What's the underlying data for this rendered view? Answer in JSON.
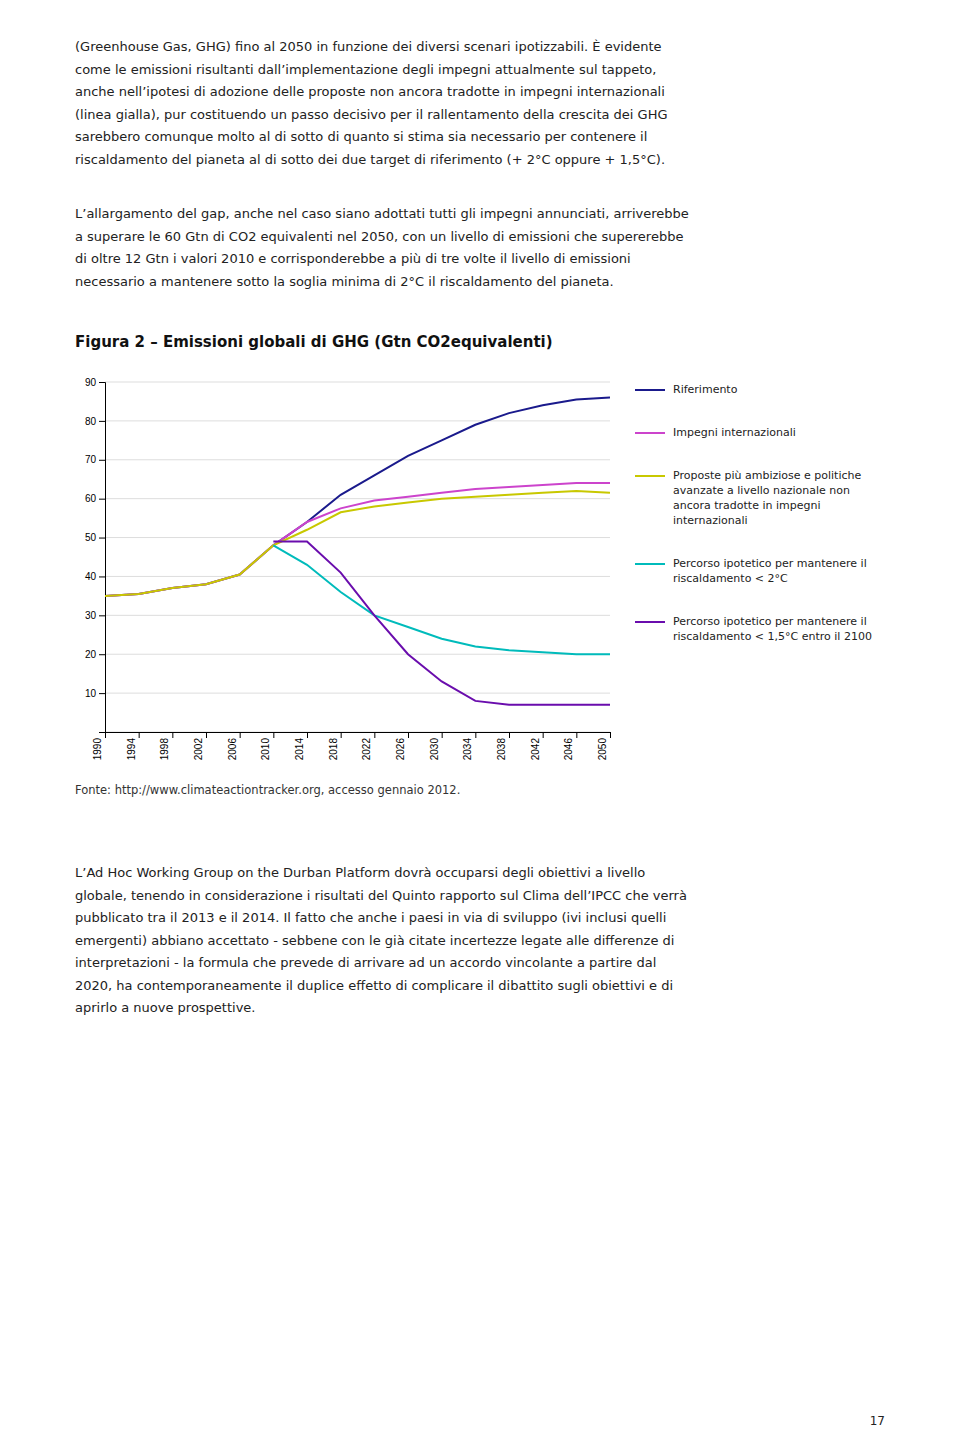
{
  "text_above": [
    [
      "(Greenhouse Gas, GHG) fino al 2050 in funzione dei diversi scenari ipotizzabili. È evidente",
      "come le emissioni risultanti dall’implementazione degli impegni attualmente sul tappeto,",
      "anche nell’ipotesi di adozione delle proposte non ancora tradotte in impegni internazionali",
      "(linea gialla), pur costituendo un passo decisivo per il rallentamento della crescita dei GHG",
      "sarebbero comunque molto al di sotto di quanto si stima sia necessario per contenere il",
      "riscaldamento del pianeta al di sotto dei due target di riferimento (+ 2°C oppure + 1,5°C)."
    ],
    [
      "L’allargamento del gap, anche nel caso siano adottati tutti gli impegni annunciati, arriverebbe",
      "a superare le 60 Gtn di CO2 equivalenti nel 2050, con un livello di emissioni che supererebbe",
      "di oltre 12 Gtn i valori 2010 e corrisponderebbe a più di tre volte il livello di emissioni",
      "necessario a mantenere sotto la soglia minima di 2°C il riscaldamento del pianeta."
    ]
  ],
  "chart_data": {
    "type": "line",
    "title": "Figura 2 – Emissioni globali di GHG (Gtn CO2equivalenti)",
    "xlim": [
      1990,
      2050
    ],
    "xticks": [
      1990,
      1994,
      1998,
      2002,
      2006,
      2010,
      2014,
      2018,
      2022,
      2026,
      2030,
      2034,
      2038,
      2042,
      2046,
      2050
    ],
    "ylim": [
      0,
      90
    ],
    "yticks": [
      {
        "value": 0,
        "label": null
      },
      10,
      20,
      30,
      40,
      50,
      60,
      70,
      80,
      90
    ],
    "grid": true,
    "legend": "right",
    "series": [
      {
        "name": "Riferimento",
        "color": "#1a1a8c",
        "x": [
          1990,
          1994,
          1998,
          2002,
          2006,
          2010,
          2014,
          2018,
          2022,
          2026,
          2030,
          2034,
          2038,
          2042,
          2046,
          2050
        ],
        "values": [
          35,
          35.5,
          37,
          38,
          40.5,
          48,
          54,
          61,
          66,
          71,
          75,
          79,
          82,
          84,
          85.5,
          86
        ]
      },
      {
        "name": "Impegni internazionali",
        "color": "#cc44cc",
        "x": [
          1990,
          1994,
          1998,
          2002,
          2006,
          2010,
          2014,
          2018,
          2022,
          2026,
          2030,
          2034,
          2038,
          2042,
          2046,
          2050
        ],
        "values": [
          35,
          35.5,
          37,
          38,
          40.5,
          48,
          54,
          57.5,
          59.5,
          60.5,
          61.5,
          62.5,
          63,
          63.5,
          64,
          64
        ]
      },
      {
        "name": "Proposte più ambiziose e politiche\navanzate a livello nazionale non\nancora tradotte in impegni\ninternazionali",
        "color": "#c8c800",
        "x": [
          1990,
          1994,
          1998,
          2002,
          2006,
          2010,
          2014,
          2018,
          2022,
          2026,
          2030,
          2034,
          2038,
          2042,
          2046,
          2050
        ],
        "values": [
          35,
          35.5,
          37,
          38,
          40.5,
          48,
          52,
          56.5,
          58,
          59,
          60,
          60.5,
          61,
          61.5,
          62,
          61.5
        ]
      },
      {
        "name": "Percorso ipotetico per mantenere il\nriscaldamento < 2°C",
        "color": "#00bbbb",
        "x": [
          2010,
          2014,
          2018,
          2022,
          2026,
          2030,
          2034,
          2038,
          2042,
          2046,
          2050
        ],
        "values": [
          48,
          43,
          36,
          30,
          27,
          24,
          22,
          21,
          20.5,
          20,
          20
        ]
      },
      {
        "name": "Percorso ipotetico per mantenere il\nriscaldamento < 1,5°C entro il 2100",
        "color": "#6a0dad",
        "x": [
          2010,
          2014,
          2018,
          2022,
          2026,
          2030,
          2034,
          2038,
          2042,
          2046,
          2050
        ],
        "values": [
          49,
          49,
          41,
          30,
          20,
          13,
          8,
          7,
          7,
          7,
          7
        ]
      }
    ],
    "source": "Fonte: http://www.climateactiontracker.org, accesso gennaio 2012."
  },
  "text_below": [
    [
      "L’Ad Hoc Working Group on the Durban Platform dovrà occuparsi degli obiettivi a livello",
      "globale, tenendo in considerazione i risultati del Quinto rapporto sul Clima dell’IPCC che verrà",
      "pubblicato tra il 2013 e il 2014. Il fatto che anche i paesi in via di sviluppo (ivi inclusi quelli",
      "emergenti) abbiano accettato - sebbene con le già citate incertezze legate alle differenze di",
      "interpretazioni - la formula che prevede di arrivare ad un accordo vincolante a partire dal",
      "2020, ha contemporaneamente il duplice effetto di complicare il dibattito sugli obiettivi e di",
      "aprirlo a nuove prospettive."
    ]
  ],
  "page_number": "17"
}
